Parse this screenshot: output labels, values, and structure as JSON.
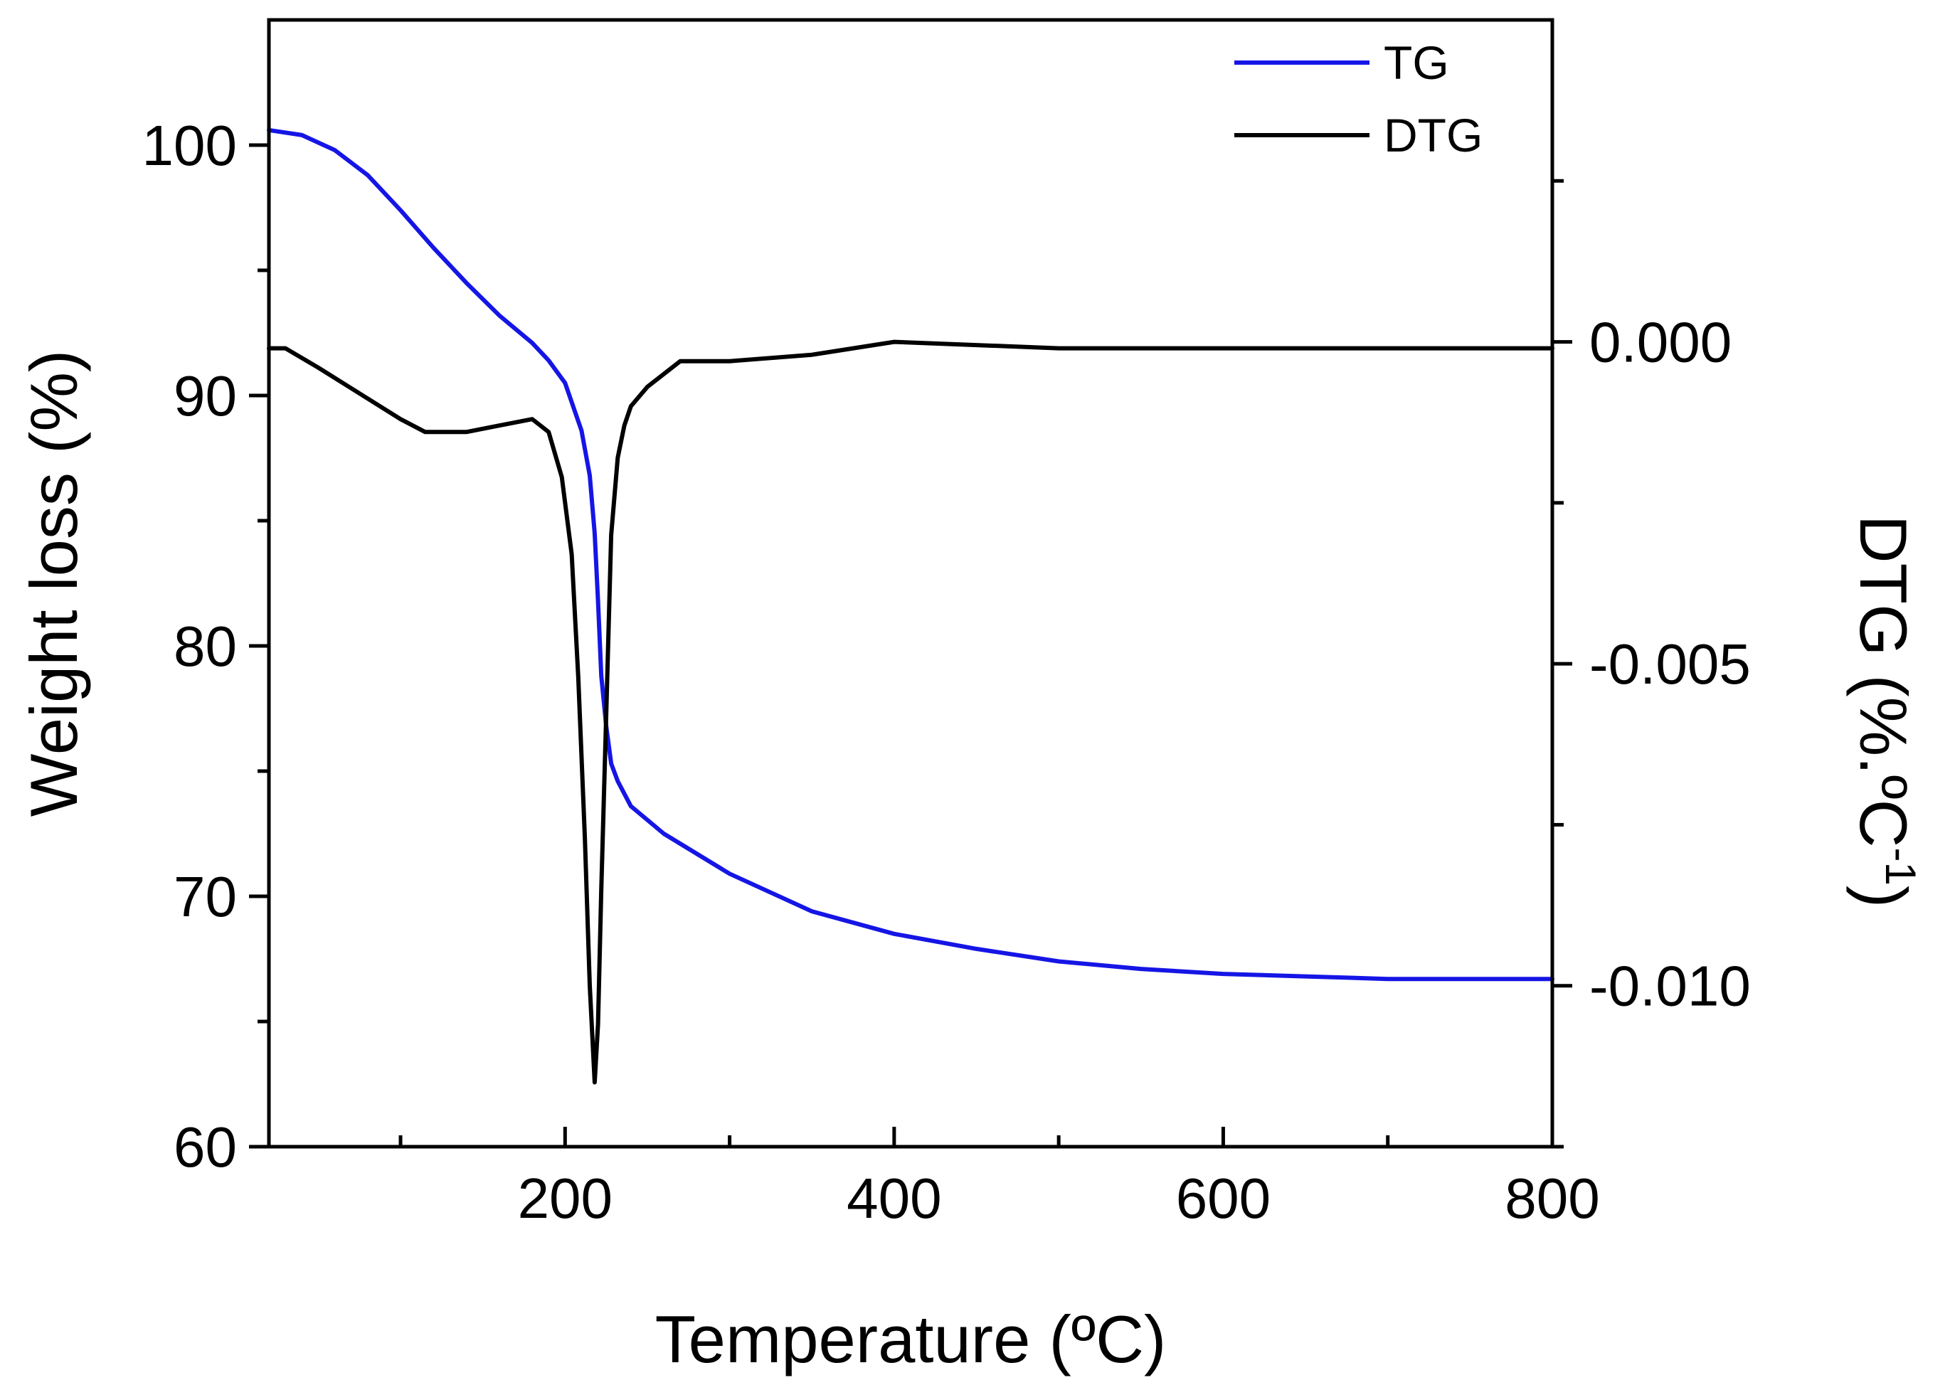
{
  "chart_data": {
    "type": "line",
    "title": "",
    "xlabel": "Temperature (ºC)",
    "ylabel": "Weight loss (%)",
    "y2label_main": "DTG (%.ºC",
    "y2label_sup": "-1",
    "y2label_close": ")",
    "xlim": [
      20,
      800
    ],
    "ylim": [
      60,
      105
    ],
    "y2lim": [
      -0.0125,
      0.005
    ],
    "xticks": [
      200,
      400,
      600,
      800
    ],
    "xtick_labels": [
      "200",
      "400",
      "600",
      "800"
    ],
    "yticks": [
      60,
      70,
      80,
      90,
      100
    ],
    "ytick_labels": [
      "60",
      "70",
      "80",
      "90",
      "100"
    ],
    "y2ticks": [
      -0.01,
      -0.005,
      0.0
    ],
    "y2tick_labels": [
      "-0.010",
      "-0.005",
      "0.000"
    ],
    "legend_position": "top-right",
    "colors": {
      "tg": "#1515e6",
      "dtg": "#000000"
    },
    "series": [
      {
        "name": "TG",
        "axis": "left",
        "x": [
          20,
          40,
          60,
          80,
          100,
          120,
          140,
          160,
          180,
          190,
          200,
          210,
          215,
          218,
          220,
          222,
          225,
          228,
          232,
          240,
          260,
          300,
          350,
          400,
          450,
          500,
          550,
          600,
          650,
          700,
          750,
          800
        ],
        "values": [
          100.6,
          100.4,
          99.8,
          98.8,
          97.4,
          95.9,
          94.5,
          93.2,
          92.1,
          91.4,
          90.5,
          88.6,
          86.8,
          84.5,
          81.8,
          78.8,
          76.8,
          75.3,
          74.6,
          73.6,
          72.5,
          70.9,
          69.4,
          68.5,
          67.9,
          67.4,
          67.1,
          66.9,
          66.8,
          66.7,
          66.7,
          66.7
        ]
      },
      {
        "name": "DTG",
        "axis": "right",
        "x": [
          20,
          30,
          50,
          75,
          100,
          115,
          140,
          160,
          180,
          190,
          198,
          204,
          208,
          212,
          215,
          218,
          220,
          222,
          225,
          228,
          232,
          236,
          240,
          250,
          270,
          300,
          350,
          400,
          500,
          600,
          700,
          800
        ],
        "values": [
          -0.0001,
          -0.0001,
          -0.0004,
          -0.0008,
          -0.0012,
          -0.0014,
          -0.0014,
          -0.0013,
          -0.0012,
          -0.0014,
          -0.0021,
          -0.0033,
          -0.0052,
          -0.0077,
          -0.01,
          -0.0115,
          -0.0106,
          -0.0085,
          -0.0058,
          -0.003,
          -0.0018,
          -0.0013,
          -0.001,
          -0.0007,
          -0.0003,
          -0.0003,
          -0.0002,
          0.0,
          -0.0001,
          -0.0001,
          -0.0001,
          -0.0001
        ]
      }
    ]
  }
}
